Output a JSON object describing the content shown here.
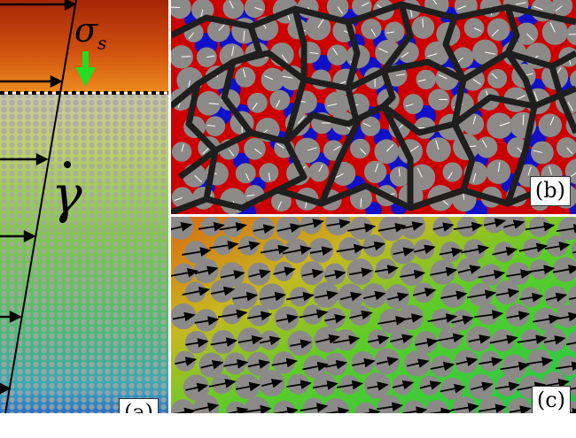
{
  "panel_a": {
    "label": "(a)",
    "stress_symbol": "σ",
    "stress_subscript": "s",
    "shear_rate_symbol": "γ"
  },
  "panel_b": {
    "label": "(b)"
  },
  "panel_c": {
    "label": "(c)"
  },
  "colors": {
    "plate_top": "#a82808",
    "plate_bottom": "#e8801c",
    "force_arrow": "#22dd22",
    "particle": "#8c8a88",
    "network": "#1e1e1e",
    "stress_red": "#dd0000",
    "stress_blue": "#0000cc",
    "flow_green": "#22cc22",
    "flow_orange": "#e8801c"
  }
}
